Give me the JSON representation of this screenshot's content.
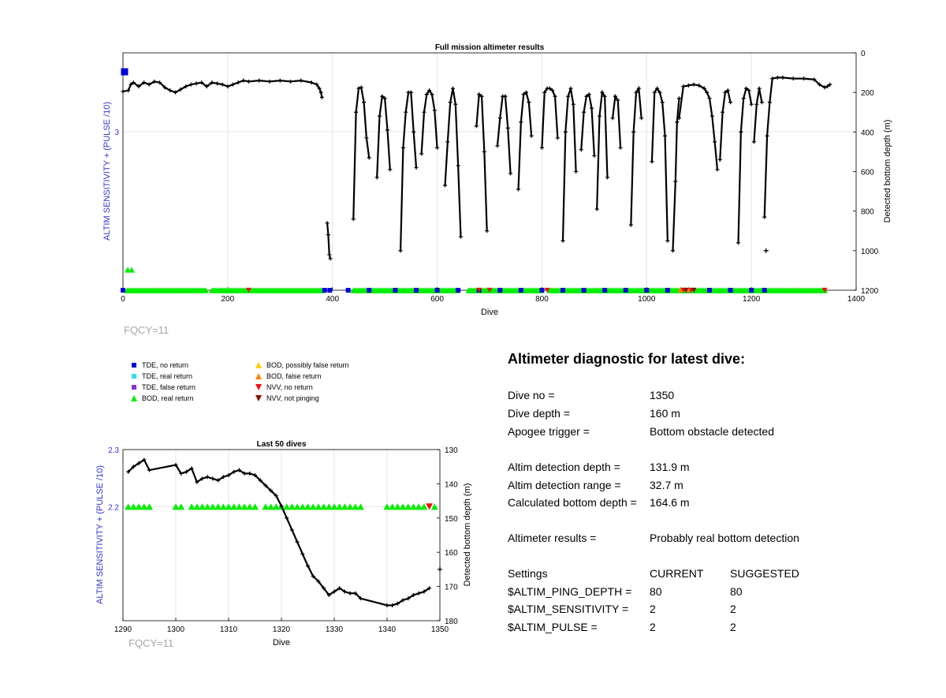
{
  "colors": {
    "tde_no_return": "#0000dd",
    "tde_real_return": "#33ddee",
    "tde_false_return": "#8833cc",
    "bod_real_return": "#00ee00",
    "bod_possibly_false": "#ffcc00",
    "bod_false": "#ff8800",
    "nvv_no_return": "#ee1111",
    "nvv_not_pinging": "#881100",
    "left_axis": "#3333cc",
    "line": "#000000"
  },
  "chart_data": [
    {
      "type": "line",
      "title": "Full mission altimeter results",
      "xlabel": "Dive",
      "ylabel_left": "ALTIM SENSITIVITY + (PULSE /10)",
      "ylabel_right": "Detected bottom depth (m)",
      "xlim": [
        0,
        1400
      ],
      "ylim_right": [
        1200,
        0
      ],
      "x_ticks": [
        "0",
        "200",
        "400",
        "600",
        "800",
        "1000",
        "1200",
        "1400"
      ],
      "y_ticks_right": [
        "0",
        "200",
        "400",
        "600",
        "800",
        "1000",
        "1200"
      ],
      "y_ticks_left": [
        "3"
      ],
      "grid": true,
      "series": [
        {
          "name": "Detected bottom depth",
          "segments": [
            {
              "x": [
                0,
                10,
                15,
                20,
                30,
                40,
                50,
                60,
                70,
                80,
                90,
                100,
                110,
                120,
                130,
                140,
                150,
                160,
                170,
                180,
                190,
                200,
                210,
                220,
                230,
                240,
                260,
                280,
                300,
                320,
                340,
                360,
                370,
                375,
                378,
                380
              ],
              "y": [
                195,
                190,
                160,
                150,
                170,
                150,
                160,
                145,
                150,
                175,
                190,
                200,
                185,
                170,
                160,
                155,
                150,
                170,
                150,
                155,
                160,
                170,
                160,
                150,
                140,
                145,
                140,
                145,
                140,
                145,
                140,
                150,
                160,
                180,
                200,
                225
              ]
            },
            {
              "x": [
                390,
                392,
                394,
                396
              ],
              "y": [
                860,
                920,
                1020,
                1040
              ]
            },
            {
              "x": [
                440,
                445,
                450,
                455,
                460,
                465,
                470
              ],
              "y": [
                840,
                300,
                180,
                175,
                250,
                430,
                530
              ]
            },
            {
              "x": [
                485,
                490,
                495,
                500,
                505,
                510
              ],
              "y": [
                630,
                320,
                220,
                230,
                390,
                590
              ]
            },
            {
              "x": [
                530,
                535,
                540,
                545,
                550,
                555,
                560
              ],
              "y": [
                1000,
                480,
                300,
                200,
                200,
                400,
                580
              ]
            },
            {
              "x": [
                570,
                575,
                580,
                585,
                590,
                595,
                600
              ],
              "y": [
                510,
                300,
                210,
                190,
                210,
                290,
                480
              ]
            },
            {
              "x": [
                615,
                620,
                625,
                630,
                635,
                640,
                645
              ],
              "y": [
                670,
                450,
                250,
                180,
                260,
                570,
                930
              ]
            },
            {
              "x": [
                675,
                680,
                685,
                690,
                695
              ],
              "y": [
                370,
                210,
                220,
                500,
                900
              ]
            },
            {
              "x": [
                715,
                720,
                725,
                730,
                735,
                740
              ],
              "y": [
                470,
                330,
                220,
                220,
                380,
                610
              ]
            },
            {
              "x": [
                755,
                760,
                765,
                770,
                775,
                780
              ],
              "y": [
                690,
                350,
                210,
                200,
                250,
                420
              ]
            },
            {
              "x": [
                800,
                805,
                810,
                815,
                820,
                825,
                830
              ],
              "y": [
                480,
                200,
                180,
                180,
                190,
                220,
                430
              ]
            },
            {
              "x": [
                840,
                845,
                850,
                855,
                860,
                865
              ],
              "y": [
                950,
                400,
                220,
                180,
                260,
                600
              ]
            },
            {
              "x": [
                875,
                880,
                885,
                890,
                895,
                900
              ],
              "y": [
                490,
                300,
                220,
                210,
                280,
                520
              ]
            },
            {
              "x": [
                905,
                910,
                915,
                920,
                925
              ],
              "y": [
                790,
                320,
                200,
                220,
                630
              ]
            },
            {
              "x": [
                935,
                940,
                945,
                950
              ],
              "y": [
                330,
                220,
                240,
                480
              ]
            },
            {
              "x": [
                970,
                975,
                980,
                985,
                990
              ],
              "y": [
                870,
                400,
                200,
                180,
                330
              ]
            },
            {
              "x": [
                1010,
                1015,
                1020,
                1025,
                1030,
                1035,
                1040
              ],
              "y": [
                550,
                200,
                180,
                200,
                250,
                420,
                950
              ]
            },
            {
              "x": [
                1050,
                1055,
                1058,
                1062
              ],
              "y": [
                1000,
                650,
                350,
                230
              ]
            },
            {
              "x": [
                1062,
                1070,
                1080,
                1090,
                1100,
                1110
              ],
              "y": [
                330,
                170,
                165,
                160,
                165,
                180
              ]
            },
            {
              "x": [
                1110,
                1115,
                1120,
                1125,
                1130,
                1135
              ],
              "y": [
                180,
                200,
                230,
                320,
                450,
                590
              ]
            },
            {
              "x": [
                1140,
                1145,
                1150,
                1155,
                1160
              ],
              "y": [
                540,
                300,
                200,
                190,
                250
              ]
            },
            {
              "x": [
                1175,
                1180,
                1185,
                1190,
                1195,
                1200
              ],
              "y": [
                960,
                400,
                230,
                180,
                190,
                260
              ]
            },
            {
              "x": [
                1205,
                1210,
                1215,
                1220
              ],
              "y": [
                450,
                260,
                180,
                250
              ]
            },
            {
              "x": [
                1225,
                1230,
                1235,
                1240,
                1250,
                1260,
                1280,
                1300,
                1320,
                1330,
                1340,
                1345,
                1350
              ],
              "y": [
                830,
                420,
                250,
                130,
                125,
                125,
                130,
                130,
                135,
                160,
                175,
                170,
                160
              ]
            }
          ],
          "isolated_points": [
            {
              "x": 1228,
              "y": 1000
            }
          ]
        }
      ],
      "bod_real_return_ranges": [
        [
          8,
          160
        ],
        [
          170,
          380
        ],
        [
          440,
          640
        ],
        [
          660,
          800
        ],
        [
          815,
          1340
        ]
      ],
      "tde_no_return_dives": [
        0,
        385,
        395,
        430,
        470,
        520,
        560,
        600,
        640,
        680,
        720,
        760,
        800,
        840,
        880,
        920,
        960,
        1000,
        1040,
        1080,
        1120,
        1160,
        1200,
        1225
      ],
      "nvv_no_return_dives": [
        240,
        680,
        700,
        810,
        1070,
        1085,
        1340
      ],
      "nvv_not_pinging_dives": [
        1075,
        1090
      ],
      "bod_false_dives": [
        1065,
        1080
      ]
    },
    {
      "type": "line",
      "title": "Last 50 dives",
      "xlabel": "Dive",
      "ylabel_left": "ALTIM SENSITIVITY + (PULSE /10)",
      "ylabel_right": "Detected bottom depth (m)",
      "xlim": [
        1290,
        1350
      ],
      "ylim_left": [
        2.0,
        2.3
      ],
      "ylim_right": [
        180,
        130
      ],
      "x_ticks": [
        "1290",
        "1300",
        "1310",
        "1320",
        "1330",
        "1340",
        "1350"
      ],
      "y_ticks_left": [
        "2.2",
        "2.3"
      ],
      "y_ticks_right": [
        "130",
        "140",
        "150",
        "160",
        "170",
        "180"
      ],
      "grid": true,
      "series": [
        {
          "name": "Detected bottom depth",
          "x": [
            1291,
            1292,
            1293,
            1294,
            1295,
            1300,
            1301,
            1302,
            1303,
            1304,
            1305,
            1306,
            1307,
            1308,
            1309,
            1310,
            1311,
            1312,
            1313,
            1314,
            1315,
            1316,
            1317,
            1318,
            1319,
            1320,
            1321,
            1322,
            1323,
            1324,
            1325,
            1326,
            1327,
            1328,
            1329,
            1330,
            1331,
            1332,
            1333,
            1334,
            1335,
            1340,
            1341,
            1342,
            1343,
            1344,
            1345,
            1346,
            1347,
            1348
          ],
          "y": [
            136.5,
            135.0,
            134.0,
            133.0,
            136.0,
            134.5,
            137.0,
            136.5,
            135.5,
            139.5,
            138.5,
            138.0,
            138.5,
            139.0,
            138.0,
            137.5,
            136.5,
            136.0,
            137.0,
            137.0,
            137.5,
            139.0,
            140.5,
            142.0,
            143.5,
            146.5,
            150.0,
            153.5,
            157.0,
            160.5,
            164.0,
            167.0,
            168.5,
            170.5,
            172.5,
            171.5,
            170.5,
            171.5,
            172.0,
            172.0,
            173.5,
            175.5,
            175.5,
            175.0,
            174.0,
            173.5,
            172.5,
            172.0,
            171.5,
            170.5
          ]
        }
      ],
      "bod_real_return_dives": [
        1291,
        1292,
        1293,
        1294,
        1295,
        1300,
        1301,
        1303,
        1304,
        1305,
        1306,
        1307,
        1308,
        1309,
        1310,
        1311,
        1312,
        1313,
        1314,
        1315,
        1317,
        1318,
        1319,
        1320,
        1321,
        1322,
        1323,
        1324,
        1325,
        1326,
        1327,
        1328,
        1329,
        1330,
        1331,
        1332,
        1333,
        1334,
        1335,
        1340,
        1341,
        1342,
        1343,
        1344,
        1345,
        1346,
        1347,
        1349
      ],
      "nvv_no_return_dives": [
        1348
      ],
      "isolated_points": [
        {
          "x": 1350,
          "y": 165
        }
      ]
    }
  ],
  "fqcy_top": "FQCY=11",
  "fqcy_bottom": "FQCY=11",
  "legend": [
    {
      "marker": "square",
      "color_key": "tde_no_return",
      "label": "TDE, no return"
    },
    {
      "marker": "square",
      "color_key": "tde_real_return",
      "label": "TDE, real return"
    },
    {
      "marker": "square",
      "color_key": "tde_false_return",
      "label": "TDE, false return"
    },
    {
      "marker": "triangle-up",
      "color_key": "bod_real_return",
      "label": "BOD, real return"
    },
    {
      "marker": "triangle-up",
      "color_key": "bod_possibly_false",
      "label": "BOD, possibly false return"
    },
    {
      "marker": "triangle-up",
      "color_key": "bod_false",
      "label": "BOD, false return"
    },
    {
      "marker": "triangle-down",
      "color_key": "nvv_no_return",
      "label": "NVV, no return"
    },
    {
      "marker": "triangle-down",
      "color_key": "nvv_not_pinging",
      "label": "NVV, not pinging"
    }
  ],
  "diagnostic": {
    "title": "Altimeter diagnostic for latest dive:",
    "dive_no_label": "Dive no =",
    "dive_no": "1350",
    "dive_depth_label": "Dive depth =",
    "dive_depth": "160 m",
    "apogee_label": "Apogee trigger =",
    "apogee": "Bottom obstacle detected",
    "det_depth_label": "Altim detection depth =",
    "det_depth": "131.9 m",
    "det_range_label": "Altim detection range =",
    "det_range": "32.7 m",
    "calc_label": "Calculated bottom depth =",
    "calc": "164.6 m",
    "results_label": "Altimeter results =",
    "results": "Probably real bottom detection",
    "settings_label": "Settings",
    "current_label": "CURRENT",
    "suggested_label": "SUGGESTED",
    "settings": [
      {
        "name": "$ALTIM_PING_DEPTH =",
        "current": "80",
        "suggested": "80"
      },
      {
        "name": "$ALTIM_SENSITIVITY =",
        "current": "2",
        "suggested": "2"
      },
      {
        "name": "$ALTIM_PULSE =",
        "current": "2",
        "suggested": "2"
      }
    ]
  }
}
